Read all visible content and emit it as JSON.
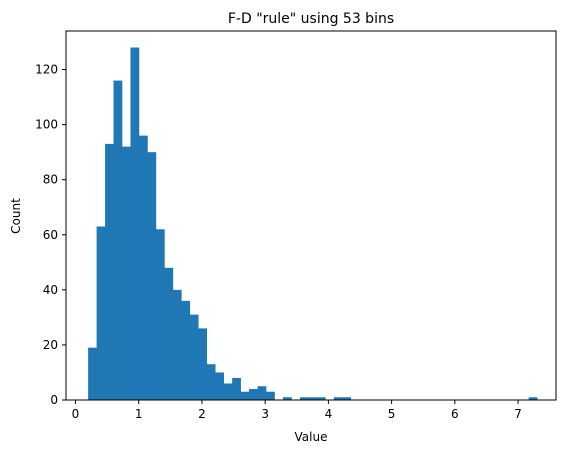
{
  "chart_data": {
    "type": "bar",
    "subtype": "histogram",
    "title": "F-D \"rule\" using 53 bins",
    "xlabel": "Value",
    "ylabel": "Count",
    "xlim": [
      -0.15,
      7.6
    ],
    "ylim": [
      0,
      134
    ],
    "xticks": [
      0,
      1,
      2,
      3,
      4,
      5,
      6,
      7
    ],
    "yticks": [
      0,
      20,
      40,
      60,
      80,
      100,
      120
    ],
    "grid": false,
    "bar_color": "#1f77b4",
    "bin_start": 0.2,
    "bin_width": 0.134,
    "counts": [
      19,
      63,
      93,
      116,
      92,
      128,
      96,
      90,
      62,
      48,
      40,
      36,
      31,
      26,
      13,
      10,
      6,
      8,
      3,
      4,
      5,
      3,
      0,
      1,
      0,
      1,
      1,
      1,
      0,
      1,
      1,
      0,
      0,
      0,
      0,
      0,
      0,
      0,
      0,
      0,
      0,
      0,
      0,
      0,
      0,
      0,
      0,
      0,
      0,
      0,
      0,
      0,
      1
    ]
  }
}
